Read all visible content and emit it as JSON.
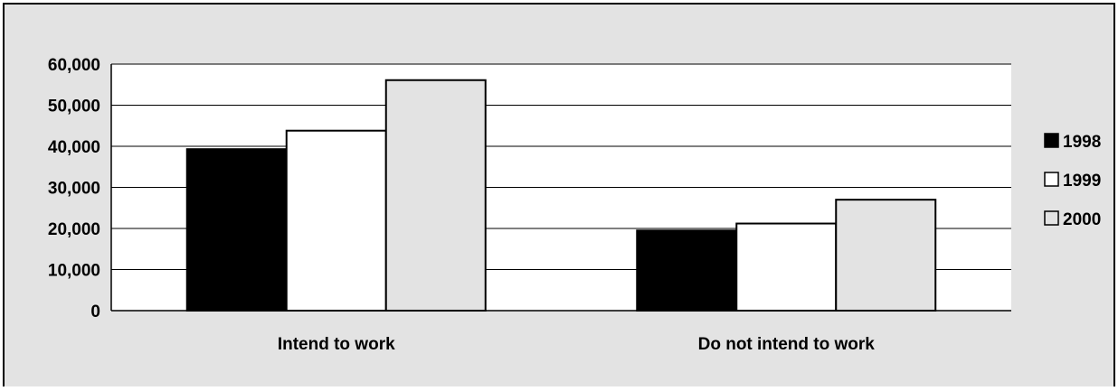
{
  "chart_data": {
    "type": "bar",
    "title": "",
    "xlabel": "",
    "ylabel": "",
    "categories": [
      "Intend to work",
      "Do not intend to work"
    ],
    "series": [
      {
        "name": "1998",
        "values": [
          39300,
          19500
        ],
        "color": "#000000"
      },
      {
        "name": "1999",
        "values": [
          43800,
          21200
        ],
        "color": "#ffffff"
      },
      {
        "name": "2000",
        "values": [
          56100,
          27000
        ],
        "color": "#e3e3e3"
      }
    ],
    "ylim": [
      0,
      60000
    ],
    "yticks": [
      {
        "value": 0,
        "label": "0"
      },
      {
        "value": 10000,
        "label": "10,000"
      },
      {
        "value": 20000,
        "label": "20,000"
      },
      {
        "value": 30000,
        "label": "30,000"
      },
      {
        "value": 40000,
        "label": "40,000"
      },
      {
        "value": 50000,
        "label": "50,000"
      },
      {
        "value": 60000,
        "label": "60,000"
      }
    ],
    "grid": true,
    "legend_position": "right",
    "colors": {
      "background": "#e3e3e3",
      "plot_area": "#ffffff",
      "border": "#000000"
    }
  }
}
